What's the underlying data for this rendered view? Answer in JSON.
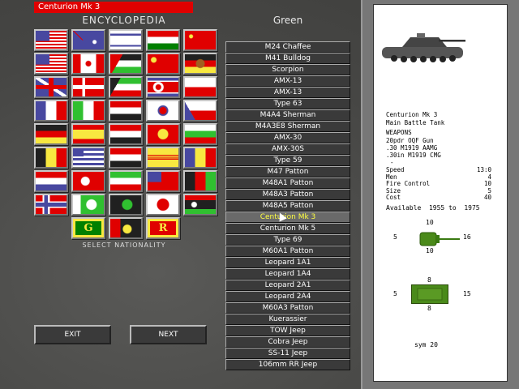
{
  "title": "Centurion Mk 3",
  "heading": "ENCYCLOPEDIA",
  "select_label": "SELECT NATIONALITY",
  "side": "Green",
  "buttons": {
    "exit": "EXIT",
    "next": "NEXT"
  },
  "flags": [
    "usa",
    "australia",
    "israel",
    "hungary",
    "ussr",
    "usmc",
    "canada",
    "jordan",
    "china",
    "east-germany",
    "uk",
    "denmark",
    "kuwait",
    "north-korea",
    "poland",
    "france",
    "italy",
    "syria",
    "south-korea",
    "czechoslovakia",
    "west-germany",
    "spain",
    "egypt",
    "vietnam",
    "bulgaria",
    "belgium",
    "greece",
    "iraq",
    "south-vietnam",
    "romania",
    "netherlands",
    "turkey",
    "iran",
    "taiwan",
    "afghanistan",
    "norway",
    "pakistan",
    "crescent-black",
    "japan",
    "libya",
    "G",
    "crescent-red-black",
    "R"
  ],
  "flag_letters": {
    "g": "G",
    "r": "R"
  },
  "units": [
    "M24 Chaffee",
    "M41 Bulldog",
    "Scorpion",
    "AMX-13",
    "AMX-13",
    "Type 63",
    "M4A4 Sherman",
    "M4A3E8 Sherman",
    "AMX-30",
    "AMX-30S",
    "Type 59",
    "M47 Patton",
    "M48A1 Patton",
    "M48A3 Patton",
    "M48A5 Patton",
    "Centurion Mk 3",
    "Centurion Mk 5",
    "Type 69",
    "M60A1 Patton",
    "Leopard 1A1",
    "Leopard 1A4",
    "Leopard 2A1",
    "Leopard 2A4",
    "M60A3 Patton",
    "Kuerassier",
    "TOW Jeep",
    "Cobra Jeep",
    "SS-11 Jeep",
    "106mm RR Jeep"
  ],
  "selected_index": 15,
  "info": {
    "name": "Centurion Mk 3",
    "type": "Main Battle Tank",
    "weapons_label": "WEAPONS",
    "weapons": [
      "20pdr OQF Gun",
      ".30 M1919 AAMG",
      ".30in M1919 CMG"
    ],
    "weapons_extra": "-",
    "stats": [
      {
        "label": "Speed",
        "value": "13:0"
      },
      {
        "label": "Men",
        "value": "4"
      },
      {
        "label": "Fire Control",
        "value": "10"
      },
      {
        "label": "Size",
        "value": "5"
      },
      {
        "label": "Cost",
        "value": "40"
      }
    ],
    "available": "Available  1955 to  1975",
    "turret_armor": {
      "top": "10",
      "left": "5",
      "right": "16",
      "bottom": "10"
    },
    "hull_armor": {
      "top": "8",
      "left": "5",
      "right": "15",
      "bottom": "8"
    },
    "sym": "sym 20"
  },
  "colors": {
    "title_bar": "#e00000",
    "selected_text": "#ffff40",
    "tank_green": "#4a8a1a"
  }
}
